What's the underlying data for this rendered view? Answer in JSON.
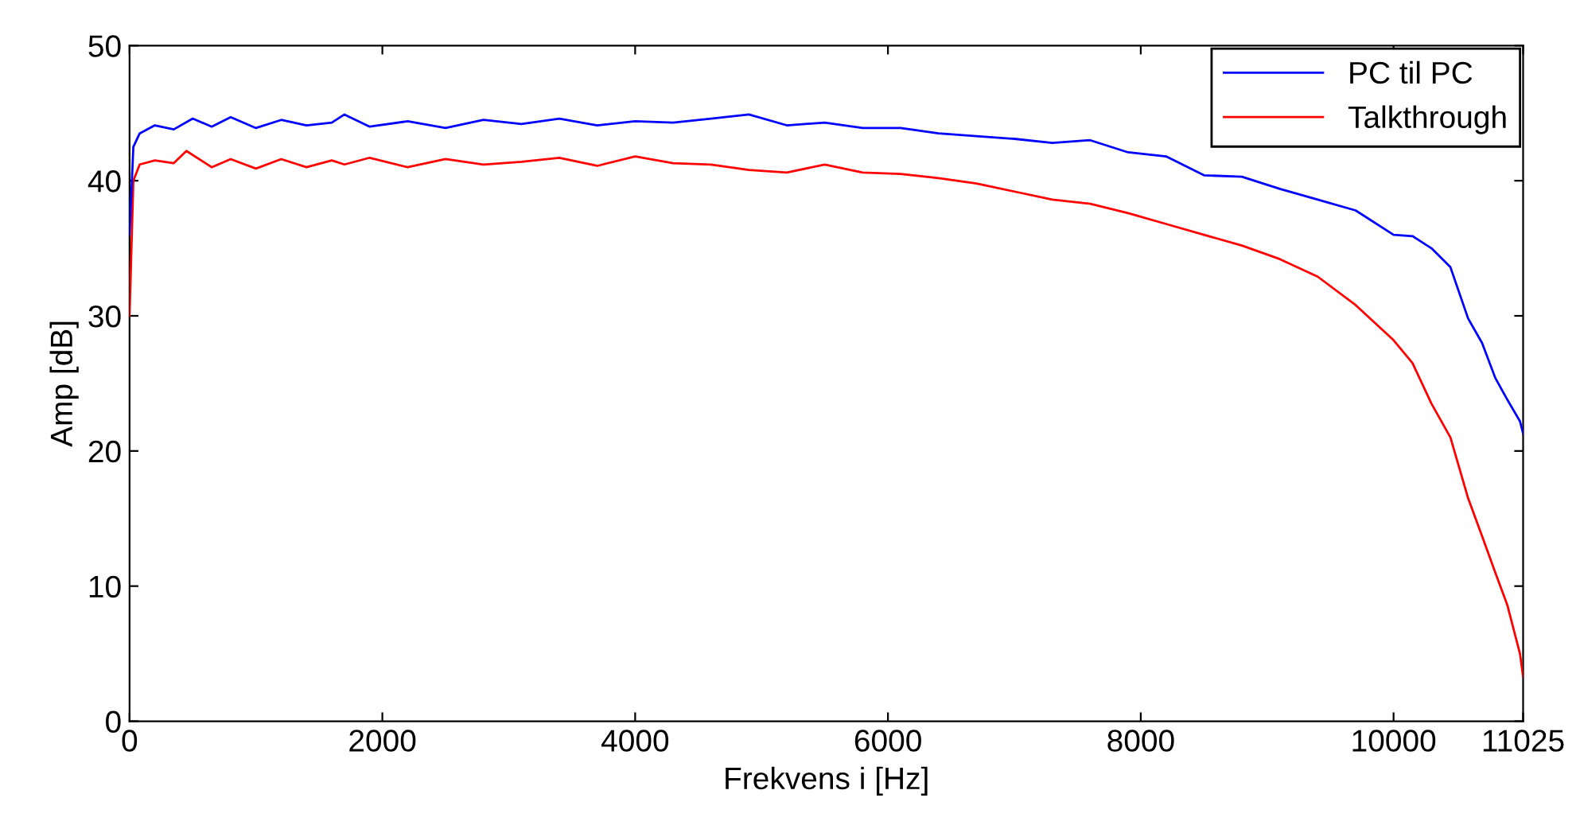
{
  "chart_data": {
    "type": "line",
    "xlabel": "Frekvens i [Hz]",
    "ylabel": "Amp [dB]",
    "xlim": [
      0,
      11025
    ],
    "xticks": [
      0,
      2000,
      4000,
      6000,
      8000,
      10000,
      11025
    ],
    "ylim": [
      0,
      50
    ],
    "yticks": [
      0,
      10,
      20,
      30,
      40,
      50
    ],
    "grid": false,
    "legend": "top right",
    "line_style": "solid",
    "marker": "none",
    "series": [
      {
        "name": "PC til PC",
        "color": "#0000ff",
        "x": [
          0,
          30,
          80,
          200,
          350,
          500,
          650,
          800,
          1000,
          1200,
          1400,
          1600,
          1700,
          1900,
          2200,
          2500,
          2800,
          3100,
          3400,
          3700,
          4000,
          4300,
          4600,
          4900,
          5200,
          5500,
          5800,
          6100,
          6400,
          6700,
          7000,
          7300,
          7600,
          7900,
          8200,
          8500,
          8800,
          9100,
          9400,
          9700,
          10000,
          10150,
          10300,
          10450,
          10590,
          10700,
          10805,
          10900,
          11000,
          11025
        ],
        "values": [
          36,
          42.5,
          43.5,
          44.1,
          43.8,
          44.6,
          44.0,
          44.7,
          43.9,
          44.5,
          44.1,
          44.3,
          44.9,
          44.0,
          44.4,
          43.9,
          44.5,
          44.2,
          44.6,
          44.1,
          44.4,
          44.3,
          44.6,
          44.9,
          44.1,
          44.3,
          43.9,
          43.9,
          43.5,
          43.3,
          43.1,
          42.8,
          43.0,
          42.1,
          41.8,
          40.4,
          40.3,
          39.4,
          38.6,
          37.8,
          36.0,
          35.9,
          35.0,
          33.6,
          29.8,
          28.0,
          25.4,
          23.8,
          22.2,
          21.3
        ]
      },
      {
        "name": "Talkthrough",
        "color": "#ff0000",
        "x": [
          0,
          30,
          80,
          200,
          350,
          450,
          650,
          800,
          1000,
          1200,
          1400,
          1600,
          1700,
          1900,
          2200,
          2500,
          2800,
          3100,
          3400,
          3700,
          4000,
          4300,
          4600,
          4900,
          5200,
          5500,
          5800,
          6100,
          6400,
          6700,
          7000,
          7300,
          7600,
          7900,
          8200,
          8500,
          8800,
          9100,
          9400,
          9700,
          10000,
          10150,
          10300,
          10450,
          10590,
          10700,
          10805,
          10900,
          11000,
          11025
        ],
        "values": [
          30,
          40.0,
          41.2,
          41.5,
          41.3,
          42.2,
          41.0,
          41.6,
          40.9,
          41.6,
          41.0,
          41.5,
          41.2,
          41.7,
          41.0,
          41.6,
          41.2,
          41.4,
          41.7,
          41.1,
          41.8,
          41.3,
          41.2,
          40.8,
          40.6,
          41.2,
          40.6,
          40.5,
          40.2,
          39.8,
          39.2,
          38.6,
          38.3,
          37.6,
          36.8,
          36.0,
          35.2,
          34.2,
          32.9,
          30.8,
          28.2,
          26.5,
          23.5,
          21.0,
          16.5,
          13.7,
          11.0,
          8.6,
          5.0,
          3.3
        ]
      }
    ]
  }
}
